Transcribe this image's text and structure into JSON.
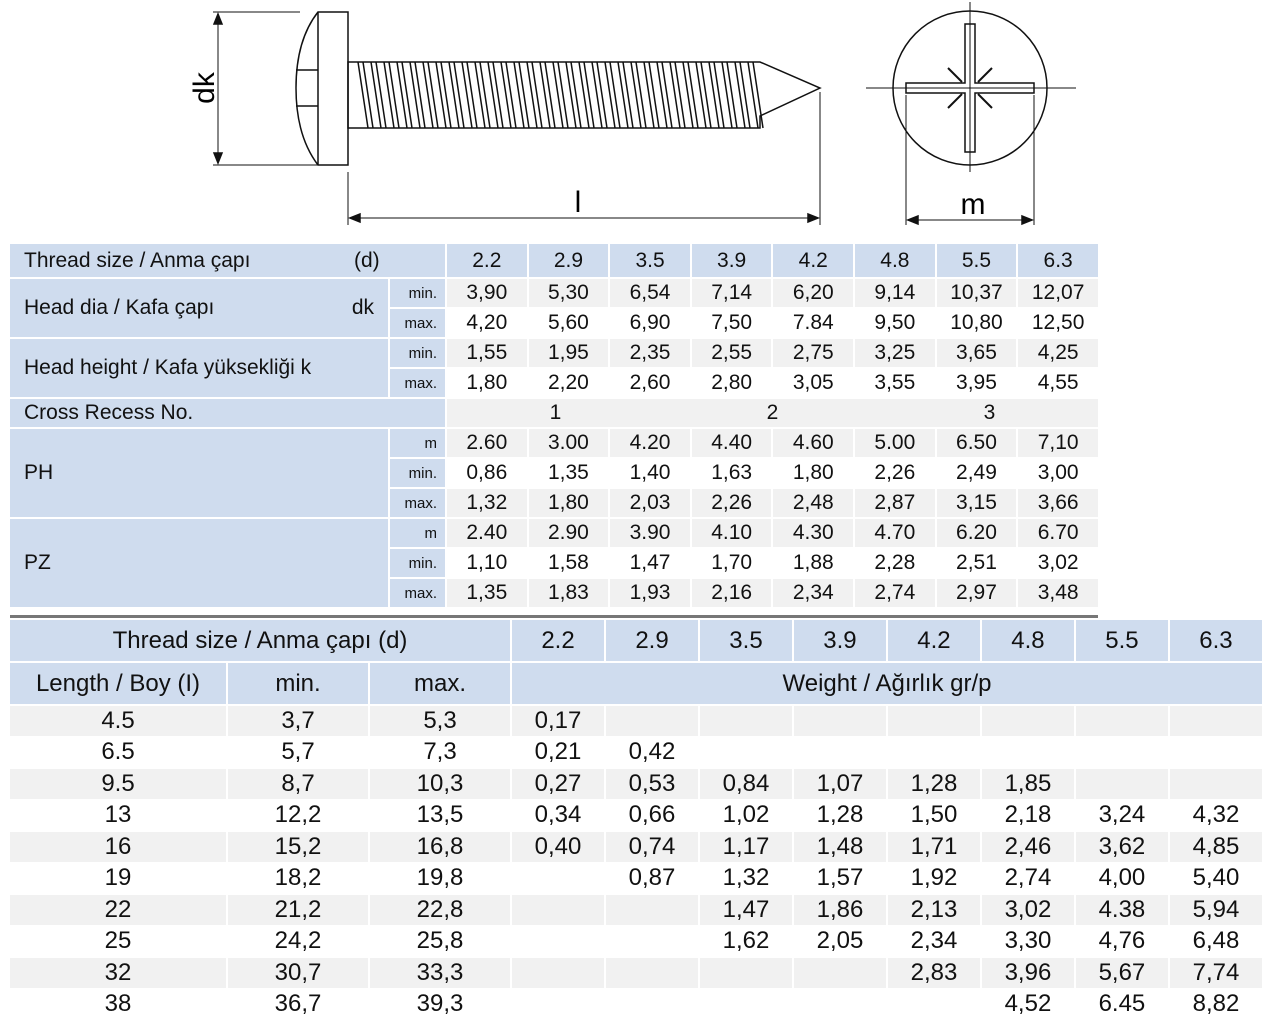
{
  "drawing": {
    "labels": {
      "head_dia": "dk",
      "length": "l",
      "recess": "m"
    }
  },
  "spec_table": {
    "header": {
      "label": "Thread size / Anma çapı",
      "symbol": "(d)",
      "sizes": [
        "2.2",
        "2.9",
        "3.5",
        "3.9",
        "4.2",
        "4.8",
        "5.5",
        "6.3"
      ]
    },
    "groups": [
      {
        "label": "Head dia / Kafa çapı",
        "symbol": "dk",
        "rows": [
          {
            "sub": "min.",
            "values": [
              "3,90",
              "5,30",
              "6,54",
              "7,14",
              "6,20",
              "9,14",
              "10,37",
              "12,07"
            ]
          },
          {
            "sub": "max.",
            "values": [
              "4,20",
              "5,60",
              "6,90",
              "7,50",
              "7.84",
              "9,50",
              "10,80",
              "12,50"
            ]
          }
        ]
      },
      {
        "label": "Head height / Kafa yüksekliği",
        "symbol": "k",
        "rows": [
          {
            "sub": "min.",
            "values": [
              "1,55",
              "1,95",
              "2,35",
              "2,55",
              "2,75",
              "3,25",
              "3,65",
              "4,25"
            ]
          },
          {
            "sub": "max.",
            "values": [
              "1,80",
              "2,20",
              "2,60",
              "2,80",
              "3,05",
              "3,55",
              "3,95",
              "4,55"
            ]
          }
        ]
      },
      {
        "label": "PH",
        "symbol": "",
        "rows": [
          {
            "sub": "m",
            "values": [
              "2.60",
              "3.00",
              "4.20",
              "4.40",
              "4.60",
              "5.00",
              "6.50",
              "7,10"
            ]
          },
          {
            "sub": "min.",
            "values": [
              "0,86",
              "1,35",
              "1,40",
              "1,63",
              "1,80",
              "2,26",
              "2,49",
              "3,00"
            ]
          },
          {
            "sub": "max.",
            "values": [
              "1,32",
              "1,80",
              "2,03",
              "2,26",
              "2,48",
              "2,87",
              "3,15",
              "3,66"
            ]
          }
        ]
      },
      {
        "label": "PZ",
        "symbol": "",
        "rows": [
          {
            "sub": "m",
            "values": [
              "2.40",
              "2.90",
              "3.90",
              "4.10",
              "4.30",
              "4.70",
              "6.20",
              "6.70"
            ]
          },
          {
            "sub": "min.",
            "values": [
              "1,10",
              "1,58",
              "1,47",
              "1,70",
              "1,88",
              "2,28",
              "2,51",
              "3,02"
            ]
          },
          {
            "sub": "max.",
            "values": [
              "1,35",
              "1,83",
              "1,93",
              "2,16",
              "2,34",
              "2,74",
              "2,97",
              "3,48"
            ]
          }
        ]
      }
    ],
    "cross_recess": {
      "label": "Cross Recess No.",
      "values": [
        "1",
        "2",
        "3"
      ]
    }
  },
  "weight_table": {
    "header": {
      "label": "Thread size / Anma çapı (d)",
      "sizes": [
        "2.2",
        "2.9",
        "3.5",
        "3.9",
        "4.2",
        "4.8",
        "5.5",
        "6.3"
      ]
    },
    "subheader": {
      "length": "Length / Boy (I)",
      "min": "min.",
      "max": "max.",
      "weight": "Weight / Ağırlık gr/p"
    },
    "rows": [
      {
        "length": "4.5",
        "min": "3,7",
        "max": "5,3",
        "w": [
          "0,17",
          "",
          "",
          "",
          "",
          "",
          "",
          ""
        ]
      },
      {
        "length": "6.5",
        "min": "5,7",
        "max": "7,3",
        "w": [
          "0,21",
          "0,42",
          "",
          "",
          "",
          "",
          "",
          ""
        ]
      },
      {
        "length": "9.5",
        "min": "8,7",
        "max": "10,3",
        "w": [
          "0,27",
          "0,53",
          "0,84",
          "1,07",
          "1,28",
          "1,85",
          "",
          ""
        ]
      },
      {
        "length": "13",
        "min": "12,2",
        "max": "13,5",
        "w": [
          "0,34",
          "0,66",
          "1,02",
          "1,28",
          "1,50",
          "2,18",
          "3,24",
          "4,32"
        ]
      },
      {
        "length": "16",
        "min": "15,2",
        "max": "16,8",
        "w": [
          "0,40",
          "0,74",
          "1,17",
          "1,48",
          "1,71",
          "2,46",
          "3,62",
          "4,85"
        ]
      },
      {
        "length": "19",
        "min": "18,2",
        "max": "19,8",
        "w": [
          "",
          "0,87",
          "1,32",
          "1,57",
          "1,92",
          "2,74",
          "4,00",
          "5,40"
        ]
      },
      {
        "length": "22",
        "min": "21,2",
        "max": "22,8",
        "w": [
          "",
          "",
          "1,47",
          "1,86",
          "2,13",
          "3,02",
          "4.38",
          "5,94"
        ]
      },
      {
        "length": "25",
        "min": "24,2",
        "max": "25,8",
        "w": [
          "",
          "",
          "1,62",
          "2,05",
          "2,34",
          "3,30",
          "4,76",
          "6,48"
        ]
      },
      {
        "length": "32",
        "min": "30,7",
        "max": "33,3",
        "w": [
          "",
          "",
          "",
          "",
          "2,83",
          "3,96",
          "5,67",
          "7,74"
        ]
      },
      {
        "length": "38",
        "min": "36,7",
        "max": "39,3",
        "w": [
          "",
          "",
          "",
          "",
          "",
          "4,52",
          "6.45",
          "8,82"
        ]
      }
    ]
  },
  "colors": {
    "header": "#cfdcee",
    "stripe": "#f1f1f1"
  }
}
